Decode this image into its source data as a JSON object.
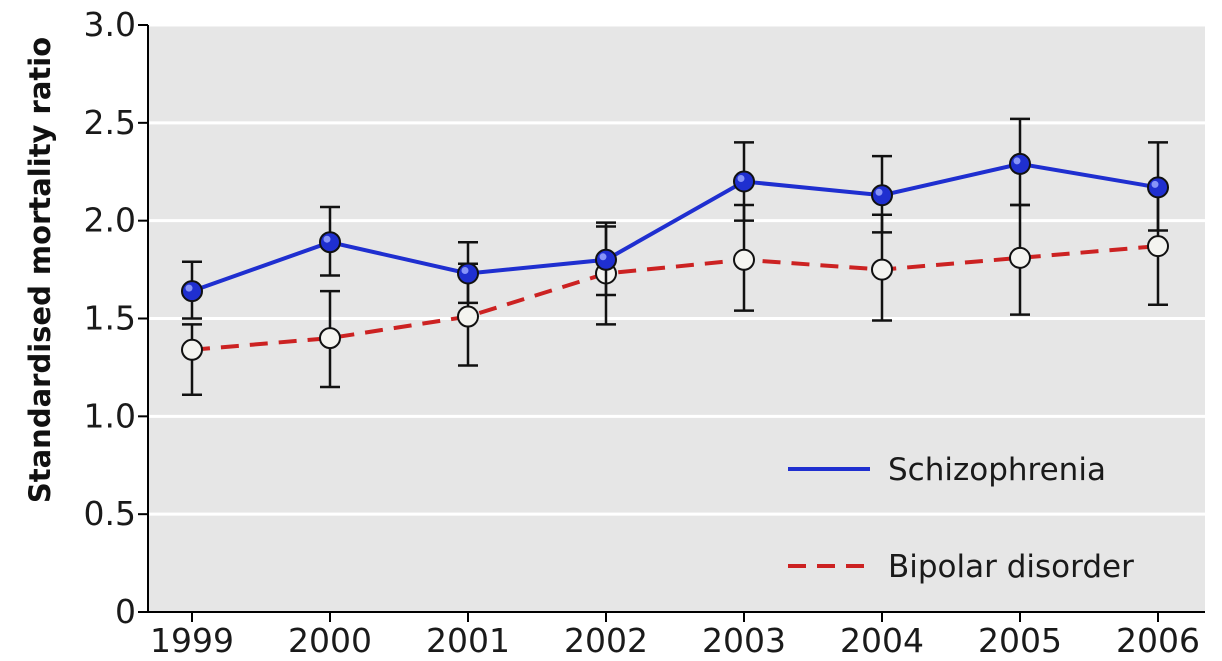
{
  "chart_data": {
    "type": "line",
    "title": "",
    "xlabel": "",
    "ylabel": "Standardised mortality ratio",
    "x": [
      "1999",
      "2000",
      "2001",
      "2002",
      "2003",
      "2004",
      "2005",
      "2006"
    ],
    "ylim": [
      0,
      3.0
    ],
    "yticks": [
      "0",
      "0.5",
      "1.0",
      "1.5",
      "2.0",
      "2.5",
      "3.0"
    ],
    "grid": true,
    "legend_position": "bottom-right",
    "series": [
      {
        "name": "Schizophrenia",
        "color": "#1f2fd0",
        "line_style": "solid",
        "marker": "filled-blue-circle",
        "values": [
          1.64,
          1.89,
          1.73,
          1.8,
          2.2,
          2.13,
          2.29,
          2.17
        ],
        "error_low": [
          1.5,
          1.72,
          1.58,
          1.62,
          2.0,
          1.94,
          2.08,
          1.95
        ],
        "error_high": [
          1.79,
          2.07,
          1.89,
          1.99,
          2.4,
          2.33,
          2.52,
          2.4
        ]
      },
      {
        "name": "Bipolar disorder",
        "color": "#cc2222",
        "line_style": "dashed",
        "marker": "open-white-circle",
        "values": [
          1.34,
          1.4,
          1.51,
          1.73,
          1.8,
          1.75,
          1.81,
          1.87
        ],
        "error_low": [
          1.11,
          1.15,
          1.26,
          1.47,
          1.54,
          1.49,
          1.52,
          1.57
        ],
        "error_high": [
          1.47,
          1.64,
          1.78,
          1.97,
          2.08,
          2.03,
          2.08,
          2.16
        ]
      }
    ]
  },
  "colors": {
    "plot_background": "#e6e6e6",
    "gridline": "#ffffff",
    "axis": "#000000"
  }
}
